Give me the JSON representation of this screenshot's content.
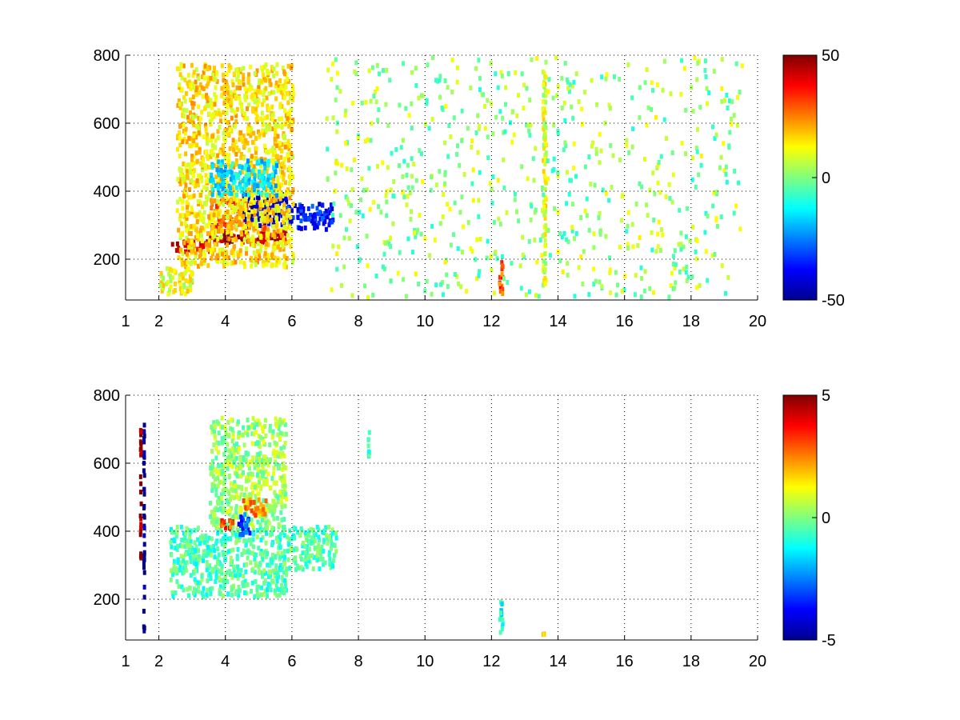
{
  "chart_data": [
    {
      "type": "heatmap",
      "title": "",
      "xlabel": "",
      "ylabel": "",
      "xlim": [
        1,
        20
      ],
      "ylim": [
        80,
        800
      ],
      "xticks": [
        1,
        2,
        4,
        6,
        8,
        10,
        12,
        14,
        16,
        18,
        20
      ],
      "yticks": [
        200,
        400,
        600,
        800
      ],
      "grid": true,
      "colormap": "jet",
      "colorbar": {
        "min": -50,
        "max": 50,
        "ticks": [
          -50,
          0,
          50
        ]
      },
      "features": [
        {
          "x": [
            2.3,
            3.5
          ],
          "y": [
            215,
            260
          ],
          "value": 40
        },
        {
          "x": [
            3.5,
            5.8
          ],
          "y": [
            240,
            290
          ],
          "value": 45
        },
        {
          "x": [
            3.5,
            5.2
          ],
          "y": [
            280,
            380
          ],
          "value": 30
        },
        {
          "x": [
            4.5,
            5.8
          ],
          "y": [
            290,
            400
          ],
          "value": -45
        },
        {
          "x": [
            5.8,
            7.2
          ],
          "y": [
            280,
            370
          ],
          "value": -35
        },
        {
          "x": [
            2.5,
            6.0
          ],
          "y": [
            170,
            780
          ],
          "value": 15
        },
        {
          "x": [
            2.0,
            3.0
          ],
          "y": [
            90,
            180
          ],
          "value": 10
        },
        {
          "x": [
            3.5,
            5.5
          ],
          "y": [
            380,
            500
          ],
          "value": -15
        },
        {
          "x": [
            12.2,
            12.3
          ],
          "y": [
            90,
            200
          ],
          "value": 30
        },
        {
          "x": [
            13.5,
            13.6
          ],
          "y": [
            90,
            760
          ],
          "value": 10
        },
        {
          "x": [
            7.0,
            19.5
          ],
          "y": [
            80,
            800
          ],
          "value": 2,
          "density": "sparse"
        }
      ]
    },
    {
      "type": "heatmap",
      "title": "",
      "xlabel": "",
      "ylabel": "",
      "xlim": [
        1,
        20
      ],
      "ylim": [
        80,
        800
      ],
      "xticks": [
        1,
        2,
        4,
        6,
        8,
        10,
        12,
        14,
        16,
        18,
        20
      ],
      "yticks": [
        200,
        400,
        600,
        800
      ],
      "grid": true,
      "colormap": "jet",
      "colorbar": {
        "min": -5,
        "max": 5,
        "ticks": [
          -5,
          0,
          5
        ]
      },
      "features": [
        {
          "x": [
            2.3,
            5.8
          ],
          "y": [
            200,
            420
          ],
          "value": -0.5
        },
        {
          "x": [
            3.5,
            5.8
          ],
          "y": [
            400,
            740
          ],
          "value": 0.3
        },
        {
          "x": [
            4.3,
            4.7
          ],
          "y": [
            380,
            460
          ],
          "value": -3
        },
        {
          "x": [
            3.8,
            4.2
          ],
          "y": [
            400,
            440
          ],
          "value": 3
        },
        {
          "x": [
            4.5,
            5.2
          ],
          "y": [
            440,
            500
          ],
          "value": 2.5
        },
        {
          "x": [
            5.8,
            7.3
          ],
          "y": [
            280,
            420
          ],
          "value": -0.5
        },
        {
          "x": [
            1.5,
            1.5
          ],
          "y": [
            90,
            730
          ],
          "value": -5
        },
        {
          "x": [
            1.4,
            1.4
          ],
          "y": [
            300,
            730
          ],
          "value": 5
        },
        {
          "x": [
            8.25,
            8.3
          ],
          "y": [
            600,
            700
          ],
          "value": -1
        },
        {
          "x": [
            12.2,
            12.3
          ],
          "y": [
            90,
            200
          ],
          "value": -1
        },
        {
          "x": [
            13.5,
            13.6
          ],
          "y": [
            95,
            105
          ],
          "value": 2
        }
      ]
    }
  ]
}
